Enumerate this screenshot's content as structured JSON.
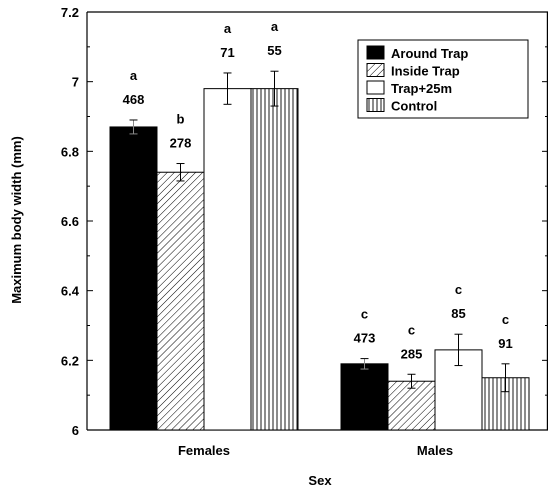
{
  "chart_data": {
    "type": "bar",
    "xlabel": "Sex",
    "ylabel": "Maximum body width (mm)",
    "ylim": [
      6,
      7.2
    ],
    "yticks": [
      "6",
      "6.2",
      "6.4",
      "6.6",
      "6.8",
      "7",
      "7.2"
    ],
    "categories": [
      "Females",
      "Males"
    ],
    "legend_position": "top-right",
    "series": [
      {
        "name": "Around Trap",
        "pattern": "solid-black",
        "values": [
          6.87,
          6.19
        ],
        "errors": [
          0.02,
          0.015
        ],
        "n": [
          "468",
          "473"
        ],
        "letters": [
          "a",
          "c"
        ]
      },
      {
        "name": "Inside Trap",
        "pattern": "diagonal-hatch",
        "values": [
          6.74,
          6.14
        ],
        "errors": [
          0.025,
          0.02
        ],
        "n": [
          "278",
          "285"
        ],
        "letters": [
          "b",
          "c"
        ]
      },
      {
        "name": "Trap+25m",
        "pattern": "white",
        "values": [
          6.98,
          6.23
        ],
        "errors": [
          0.045,
          0.045
        ],
        "n": [
          "71",
          "85"
        ],
        "letters": [
          "a",
          "c"
        ]
      },
      {
        "name": "Control",
        "pattern": "vertical-lines",
        "values": [
          6.98,
          6.15
        ],
        "errors": [
          0.05,
          0.04
        ],
        "n": [
          "55",
          "91"
        ],
        "letters": [
          "a",
          "c"
        ]
      }
    ]
  }
}
